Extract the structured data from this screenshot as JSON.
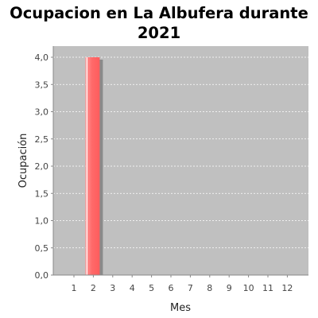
{
  "chart_data": {
    "type": "bar",
    "title_line1": "Ocupacion en  La Albufera durante",
    "title_line2": "2021",
    "xlabel": "Mes",
    "ylabel": "Ocupación",
    "categories": [
      "1",
      "2",
      "3",
      "4",
      "5",
      "6",
      "7",
      "8",
      "9",
      "10",
      "11",
      "12"
    ],
    "values": [
      0,
      4,
      0,
      0,
      0,
      0,
      0,
      0,
      0,
      0,
      0,
      0
    ],
    "ylim": [
      0,
      4
    ],
    "yticks": [
      "0,0",
      "0,5",
      "1,0",
      "1,5",
      "2,0",
      "2,5",
      "3,0",
      "3,5",
      "4,0"
    ],
    "grid": true,
    "colors": {
      "plot_background": "#c0c0c0",
      "bar": "#ff6666",
      "gridline": "#ffffff"
    }
  }
}
